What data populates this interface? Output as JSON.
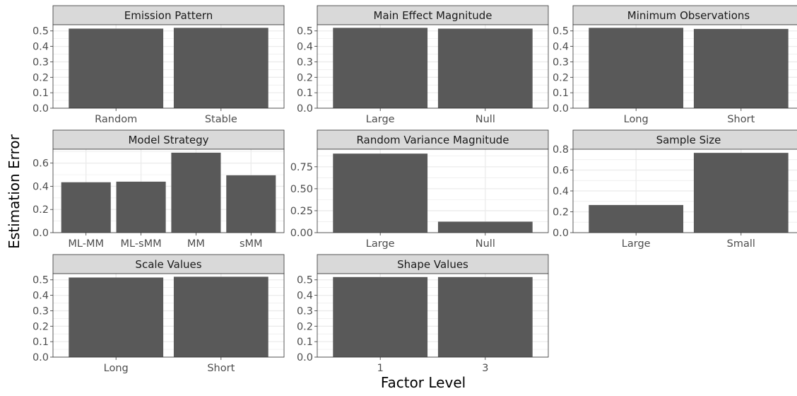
{
  "chart_data": {
    "type": "bar",
    "xlabel": "Factor Level",
    "ylabel": "Estimation Error",
    "colors": {
      "bar": "#595959",
      "strip": "#d9d9d9",
      "grid": "#ebebeb",
      "border": "#333333"
    },
    "facets": [
      {
        "title": "Emission Pattern",
        "categories": [
          "Random",
          "Stable"
        ],
        "values": [
          0.515,
          0.52
        ],
        "ylim": [
          0,
          0.54
        ],
        "yticks": [
          0.0,
          0.1,
          0.2,
          0.3,
          0.4,
          0.5
        ],
        "ytick_labels": [
          "0.0",
          "0.1",
          "0.2",
          "0.3",
          "0.4",
          "0.5"
        ]
      },
      {
        "title": "Main Effect Magnitude",
        "categories": [
          "Large",
          "Null"
        ],
        "values": [
          0.52,
          0.515
        ],
        "ylim": [
          0,
          0.54
        ],
        "yticks": [
          0.0,
          0.1,
          0.2,
          0.3,
          0.4,
          0.5
        ],
        "ytick_labels": [
          "0.0",
          "0.1",
          "0.2",
          "0.3",
          "0.4",
          "0.5"
        ]
      },
      {
        "title": "Minimum Observations",
        "categories": [
          "Long",
          "Short"
        ],
        "values": [
          0.52,
          0.513
        ],
        "ylim": [
          0,
          0.54
        ],
        "yticks": [
          0.0,
          0.1,
          0.2,
          0.3,
          0.4,
          0.5
        ],
        "ytick_labels": [
          "0.0",
          "0.1",
          "0.2",
          "0.3",
          "0.4",
          "0.5"
        ]
      },
      {
        "title": "Model Strategy",
        "categories": [
          "ML-MM",
          "ML-sMM",
          "MM",
          "sMM"
        ],
        "values": [
          0.435,
          0.44,
          0.69,
          0.495
        ],
        "ylim": [
          0,
          0.72
        ],
        "yticks": [
          0.0,
          0.2,
          0.4,
          0.6
        ],
        "ytick_labels": [
          "0.0",
          "0.2",
          "0.4",
          "0.6"
        ]
      },
      {
        "title": "Random Variance Magnitude",
        "categories": [
          "Large",
          "Null"
        ],
        "values": [
          0.9,
          0.125
        ],
        "ylim": [
          0,
          0.95
        ],
        "yticks": [
          0.0,
          0.25,
          0.5,
          0.75
        ],
        "ytick_labels": [
          "0.00",
          "0.25",
          "0.50",
          "0.75"
        ]
      },
      {
        "title": "Sample Size",
        "categories": [
          "Large",
          "Small"
        ],
        "values": [
          0.265,
          0.765
        ],
        "ylim": [
          0,
          0.8
        ],
        "yticks": [
          0.0,
          0.2,
          0.4,
          0.6,
          0.8
        ],
        "ytick_labels": [
          "0.0",
          "0.2",
          "0.4",
          "0.6",
          "0.8"
        ]
      },
      {
        "title": "Scale Values",
        "categories": [
          "Long",
          "Short"
        ],
        "values": [
          0.515,
          0.52
        ],
        "ylim": [
          0,
          0.54
        ],
        "yticks": [
          0.0,
          0.1,
          0.2,
          0.3,
          0.4,
          0.5
        ],
        "ytick_labels": [
          "0.0",
          "0.1",
          "0.2",
          "0.3",
          "0.4",
          "0.5"
        ]
      },
      {
        "title": "Shape Values",
        "categories": [
          "1",
          "3"
        ],
        "values": [
          0.518,
          0.518
        ],
        "ylim": [
          0,
          0.54
        ],
        "yticks": [
          0.0,
          0.1,
          0.2,
          0.3,
          0.4,
          0.5
        ],
        "ytick_labels": [
          "0.0",
          "0.1",
          "0.2",
          "0.3",
          "0.4",
          "0.5"
        ]
      }
    ]
  }
}
